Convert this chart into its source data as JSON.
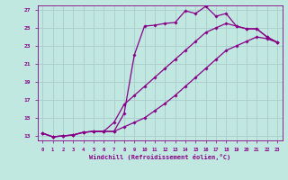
{
  "xlabel": "Windchill (Refroidissement éolien,°C)",
  "bg_color": "#c0e8e0",
  "grid_color": "#aacccc",
  "line_color": "#880088",
  "xlim": [
    -0.5,
    23.5
  ],
  "ylim": [
    12.5,
    27.5
  ],
  "xticks": [
    0,
    1,
    2,
    3,
    4,
    5,
    6,
    7,
    8,
    9,
    10,
    11,
    12,
    13,
    14,
    15,
    16,
    17,
    18,
    19,
    20,
    21,
    22,
    23
  ],
  "yticks": [
    13,
    15,
    17,
    19,
    21,
    23,
    25,
    27
  ],
  "x": [
    0,
    1,
    2,
    3,
    4,
    5,
    6,
    7,
    8,
    9,
    10,
    11,
    12,
    13,
    14,
    15,
    16,
    17,
    18,
    19,
    20,
    21,
    22,
    23
  ],
  "curve1_y": [
    13.3,
    12.9,
    13.0,
    13.1,
    13.4,
    13.5,
    13.5,
    13.5,
    15.5,
    22.0,
    25.2,
    25.3,
    25.5,
    25.6,
    26.9,
    26.6,
    27.4,
    26.3,
    26.6,
    25.2,
    24.9,
    24.9,
    24.0,
    23.4
  ],
  "curve2_y": [
    13.3,
    12.9,
    13.0,
    13.1,
    13.4,
    13.5,
    13.5,
    14.5,
    16.5,
    17.5,
    18.5,
    19.5,
    20.5,
    21.5,
    22.5,
    23.5,
    24.5,
    25.0,
    25.5,
    25.2,
    24.9,
    24.9,
    24.0,
    23.4
  ],
  "curve3_y": [
    13.3,
    12.9,
    13.0,
    13.1,
    13.4,
    13.5,
    13.5,
    13.5,
    14.0,
    14.5,
    15.0,
    15.8,
    16.6,
    17.5,
    18.5,
    19.5,
    20.5,
    21.5,
    22.5,
    23.0,
    23.5,
    24.0,
    23.8,
    23.4
  ]
}
